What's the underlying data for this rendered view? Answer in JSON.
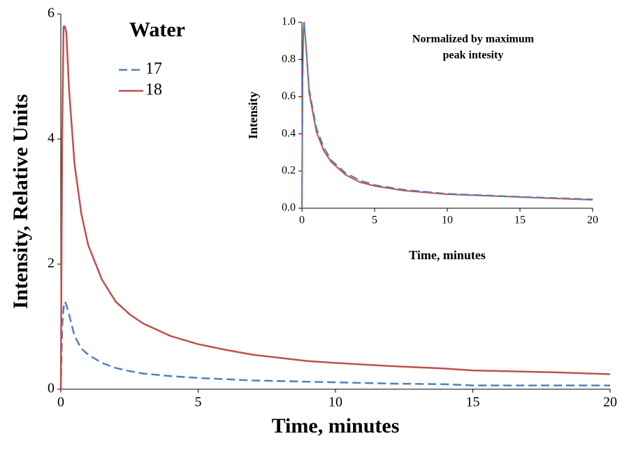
{
  "chart_data": [
    {
      "type": "line",
      "x_label": "Time, minutes",
      "y_label": "Intensity, Relative Units",
      "legend_title": "Water",
      "legend": "upper-left",
      "xlim": [
        0,
        20
      ],
      "xticks": [
        0,
        5,
        10,
        15,
        20
      ],
      "ylim": [
        0,
        6
      ],
      "yticks": [
        0,
        2,
        4,
        6
      ],
      "x": [
        0,
        0.05,
        0.1,
        0.15,
        0.2,
        0.3,
        0.5,
        0.75,
        1,
        1.5,
        2,
        2.5,
        3,
        4,
        5,
        6,
        7,
        8,
        9,
        10,
        12,
        14,
        15,
        16,
        18,
        20
      ],
      "series": [
        {
          "name": "17",
          "color": "#4f81bd",
          "dash": true,
          "values": [
            0,
            1.0,
            1.3,
            1.4,
            1.35,
            1.2,
            0.85,
            0.65,
            0.55,
            0.42,
            0.34,
            0.29,
            0.25,
            0.21,
            0.18,
            0.16,
            0.14,
            0.13,
            0.12,
            0.11,
            0.09,
            0.08,
            0.06,
            0.06,
            0.06,
            0.06
          ]
        },
        {
          "name": "18",
          "color": "#c0504d",
          "dash": false,
          "values": [
            0,
            4,
            5.8,
            5.8,
            5.7,
            4.8,
            3.6,
            2.8,
            2.3,
            1.75,
            1.4,
            1.2,
            1.05,
            0.85,
            0.72,
            0.63,
            0.55,
            0.5,
            0.45,
            0.42,
            0.37,
            0.33,
            0.3,
            0.29,
            0.27,
            0.24
          ]
        }
      ]
    },
    {
      "type": "line",
      "title": [
        "Normalized by maximum",
        "peak intesity"
      ],
      "x_label": "Time, minutes",
      "y_label": "Intensity",
      "xlim": [
        0,
        20
      ],
      "xticks": [
        0,
        5,
        10,
        15,
        20
      ],
      "ylim": [
        0,
        1
      ],
      "yticks": [
        {
          "value": 0,
          "label": "0.0"
        },
        0.2,
        0.4,
        0.6,
        0.8,
        {
          "value": 1,
          "label": "1.0"
        }
      ],
      "x": [
        0,
        0.05,
        0.1,
        0.15,
        0.3,
        0.5,
        1,
        1.5,
        2,
        3,
        4,
        5,
        7,
        10,
        15,
        20
      ],
      "series": [
        {
          "color": "#c0504d",
          "dash": false,
          "values": [
            0,
            0.7,
            0.95,
            1.0,
            0.85,
            0.62,
            0.41,
            0.31,
            0.25,
            0.18,
            0.14,
            0.12,
            0.095,
            0.075,
            0.06,
            0.045
          ]
        },
        {
          "color": "#4f81bd",
          "dash": true,
          "values": [
            0,
            0.7,
            0.95,
            1.0,
            0.86,
            0.64,
            0.43,
            0.33,
            0.26,
            0.19,
            0.15,
            0.125,
            0.1,
            0.078,
            0.062,
            0.048
          ]
        }
      ]
    }
  ]
}
